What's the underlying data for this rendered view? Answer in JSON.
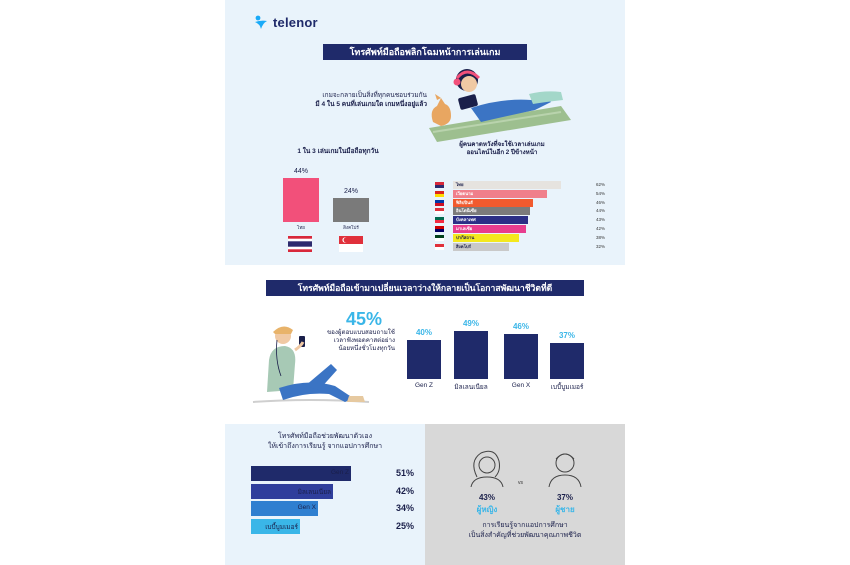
{
  "brand": {
    "name": "telenor"
  },
  "section1": {
    "title": "โทรศัพท์มือถือพลิกโฉมหน้าการเล่นเกม",
    "intro_line1": "เกมจะกลายเป็นสิ่งที่ทุกคนชอบร่วมกัน",
    "intro_line2": "มี 4 ใน 5 คนที่เล่นเกมใด เกมหนึ่งอยู่แล้ว",
    "left_heading": "1 ใน 3 เล่นเกมในมือถือทุกวัน",
    "right_heading_line1": "ผู้คนคาดหวังที่จะใช้เวลาเล่นเกม",
    "right_heading_line2": "ออนไลน์ในอีก 2 ปีข้างหน้า",
    "daily_gaming": [
      {
        "value": "44%",
        "fraction": 0.44,
        "label": "ไทย",
        "color": "#f2507a"
      },
      {
        "value": "24%",
        "fraction": 0.24,
        "label": "สิงคโปร์",
        "color": "#7a7a7a"
      }
    ],
    "future_gaming": [
      {
        "label": "ไทย",
        "value": "62%",
        "fraction": 0.62,
        "color": "#e6e3df",
        "text_color": "#1a1f4a"
      },
      {
        "label": "เวียดนาม",
        "value": "54%",
        "fraction": 0.54,
        "color": "#f07f8b",
        "text_color": "#ffffff"
      },
      {
        "label": "ฟิลิปปินส์",
        "value": "46%",
        "fraction": 0.46,
        "color": "#f15a2e",
        "text_color": "#ffffff"
      },
      {
        "label": "อินโดนีเซีย",
        "value": "44%",
        "fraction": 0.44,
        "color": "#7b7b7b",
        "text_color": "#ffffff"
      },
      {
        "label": "บังคลาเทศ",
        "value": "43%",
        "fraction": 0.43,
        "color": "#2b2f86",
        "text_color": "#ffffff"
      },
      {
        "label": "มาเลเซีย",
        "value": "42%",
        "fraction": 0.42,
        "color": "#e83d8e",
        "text_color": "#ffffff"
      },
      {
        "label": "ปากีสถาน",
        "value": "38%",
        "fraction": 0.38,
        "color": "#f4e81e",
        "text_color": "#1a1f4a"
      },
      {
        "label": "สิงคโปร์",
        "value": "32%",
        "fraction": 0.32,
        "color": "#c9c9c9",
        "text_color": "#1a1f4a"
      }
    ]
  },
  "section2": {
    "title": "โทรศัพท์มือถือเข้ามาเปลี่ยนเวลาว่างให้กลายเป็นโอกาสพัฒนาชีวิตที่ดี",
    "headline_value": "45%",
    "headline_line1": "ของผู้ตอบแบบสอบถามใช้",
    "headline_line2": "เวลาฟังพอดคาสต่อย่าง",
    "headline_line3": "น้อยหนึ่งชั่วโมงทุกวัน",
    "generations": [
      {
        "value": "40%",
        "fraction": 0.4,
        "label": "Gen Z"
      },
      {
        "value": "49%",
        "fraction": 0.49,
        "label": "มิลเลนเนียล"
      },
      {
        "value": "46%",
        "fraction": 0.46,
        "label": "Gen X"
      },
      {
        "value": "37%",
        "fraction": 0.37,
        "label": "เบบี้บูมเมอร์"
      }
    ]
  },
  "section3": {
    "title_line1": "โทรศัพท์มือถือช่วยพัฒนาตัวเอง",
    "title_line2": "ให้เข้าถึงการเรียนรู้ จากแอปการศึกษา",
    "edu_apps": [
      {
        "label": "Gen Z",
        "value": "51%",
        "fraction": 0.51,
        "color": "#1f2a6a"
      },
      {
        "label": "มิลเลนเนียล",
        "value": "42%",
        "fraction": 0.42,
        "color": "#2f3e9c"
      },
      {
        "label": "Gen X",
        "value": "34%",
        "fraction": 0.34,
        "color": "#2f7fd0"
      },
      {
        "label": "เบบี้บูมเมอร์",
        "value": "25%",
        "fraction": 0.25,
        "color": "#3ab6e8"
      }
    ],
    "vs": "vs",
    "female": {
      "value": "43%",
      "label": "ผู้หญิง"
    },
    "male": {
      "value": "37%",
      "label": "ผู้ชาย"
    },
    "note_line1": "การเรียนรู้จากแอปการศึกษา",
    "note_line2": "เป็นสิ่งสำคัญที่ช่วยพัฒนาคุณภาพชีวิต"
  },
  "colors": {
    "navy": "#1f2a6a",
    "sky": "#3ab6e8",
    "light_bg": "#e9f3fb",
    "grey_bg": "#d8d8d8"
  }
}
